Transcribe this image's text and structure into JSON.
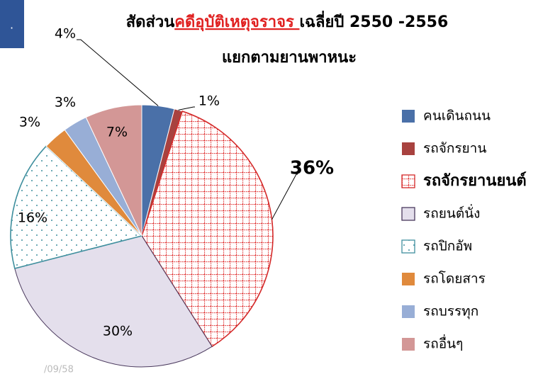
{
  "chart_data": {
    "type": "pie",
    "title": [
      "สัดส่วน",
      "คดีอุบัติเหตุจราจร ",
      "เฉลี่ยปี 2550 -2556"
    ],
    "subtitle": "แยกตามยานพาหนะ",
    "date": "/09/58",
    "categories": [
      "คนเดินถนน",
      "รถจักรยาน",
      "รถจักรยานยนต์",
      "รถยนต์นั่ง",
      "รถปิกอัพ",
      "รถโดยสาร",
      "รถบรรทุก",
      "รถอื่นๆ"
    ],
    "values": [
      4,
      1,
      36,
      30,
      16,
      3,
      3,
      7
    ],
    "value_labels": [
      "4%",
      "1%",
      "36%",
      "30%",
      "16%",
      "3%",
      "3%",
      "7%"
    ],
    "colors": [
      "#4a70a8",
      "#a8423f",
      "#d42a2a",
      "#e4dfec",
      "#3f8f9e",
      "#e08a3c",
      "#98aed6",
      "#d39796"
    ],
    "highlight": 2
  }
}
